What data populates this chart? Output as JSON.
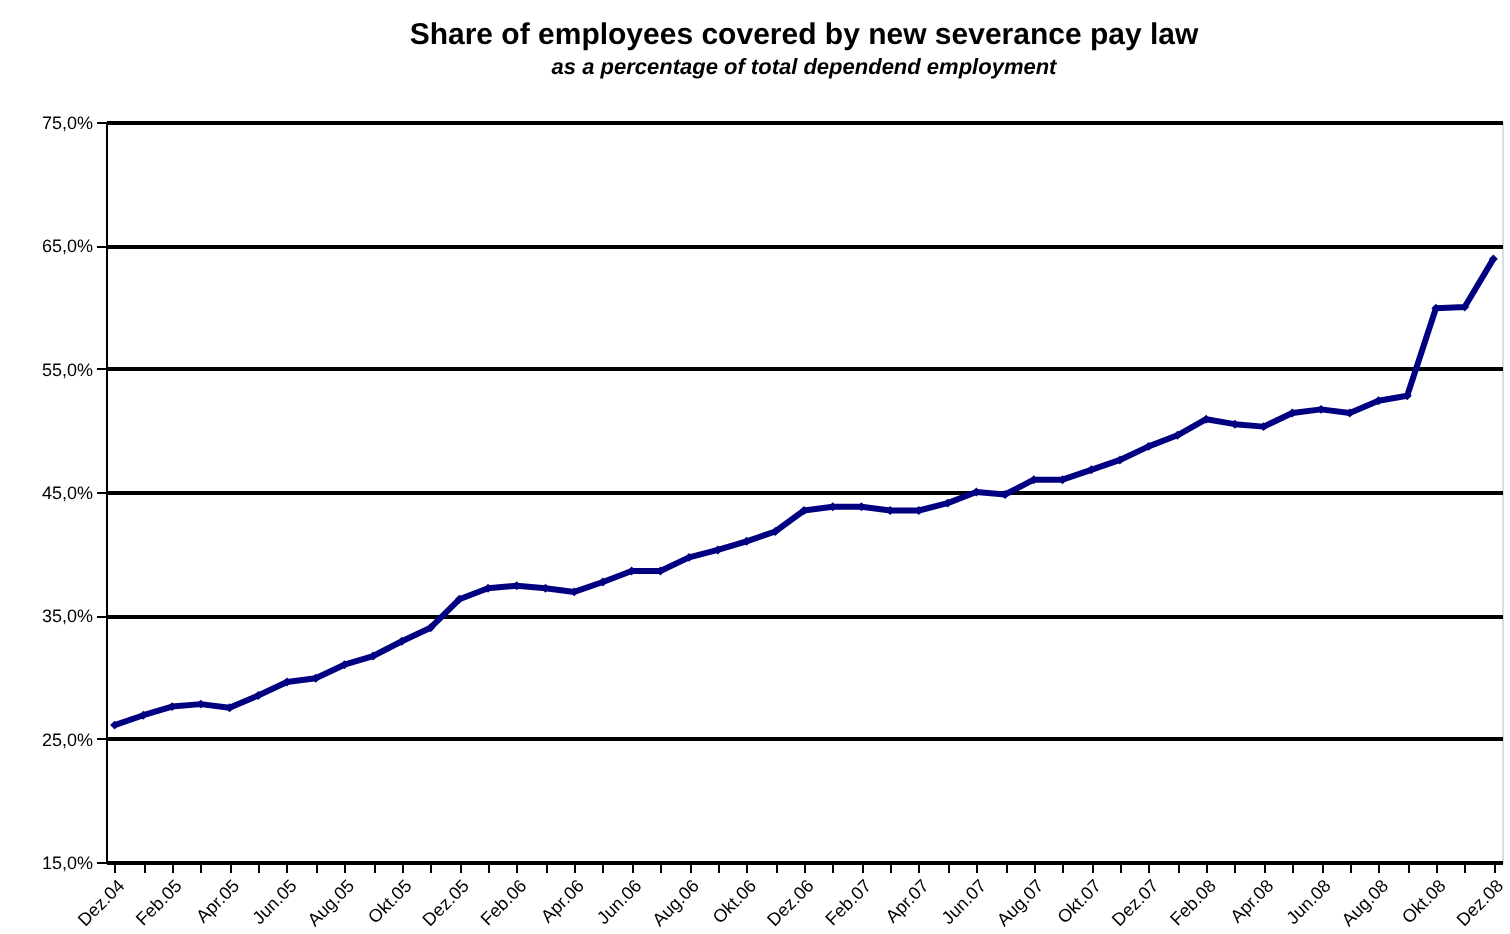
{
  "chart_data": {
    "type": "line",
    "title": "Share of employees covered by new severance pay law",
    "subtitle": "as a percentage of total dependend employment",
    "categories": [
      "Dez.04",
      null,
      "Feb.05",
      null,
      "Apr.05",
      null,
      "Jun.05",
      null,
      "Aug.05",
      null,
      "Okt.05",
      null,
      "Dez.05",
      null,
      "Feb.06",
      null,
      "Apr.06",
      null,
      "Jun.06",
      null,
      "Aug.06",
      null,
      "Okt.06",
      null,
      "Dez.06",
      null,
      "Feb.07",
      null,
      "Apr.07",
      null,
      "Jun.07",
      null,
      "Aug.07",
      null,
      "Okt.07",
      null,
      "Dez.07",
      null,
      "Feb.08",
      null,
      "Apr.08",
      null,
      "Jun.08",
      null,
      "Aug.08",
      null,
      "Okt.08",
      null,
      "Dez.08"
    ],
    "series": [
      {
        "color": "#000080",
        "values": [
          26.1,
          26.9,
          27.6,
          27.8,
          27.5,
          28.5,
          29.6,
          29.9,
          31.0,
          31.7,
          32.9,
          34.0,
          36.3,
          37.2,
          37.4,
          37.2,
          36.9,
          37.7,
          38.6,
          38.6,
          39.7,
          40.3,
          41.0,
          41.8,
          43.5,
          43.8,
          43.8,
          43.5,
          43.5,
          44.1,
          45.0,
          44.8,
          46.0,
          46.0,
          46.8,
          47.6,
          48.7,
          49.6,
          50.9,
          50.5,
          50.3,
          51.4,
          51.7,
          51.4,
          52.4,
          52.8,
          59.9,
          60.0,
          63.9
        ]
      }
    ],
    "ylim": [
      15,
      75
    ],
    "yticks": [
      {
        "value": 15,
        "label": "15,0%"
      },
      {
        "value": 25,
        "label": "25,0%"
      },
      {
        "value": 35,
        "label": "35,0%"
      },
      {
        "value": 45,
        "label": "45,0%"
      },
      {
        "value": 55,
        "label": "55,0%"
      },
      {
        "value": 65,
        "label": "65,0%"
      },
      {
        "value": 75,
        "label": "75,0%"
      }
    ],
    "grid": "y",
    "marker": "diamond",
    "line_style": "solid"
  }
}
